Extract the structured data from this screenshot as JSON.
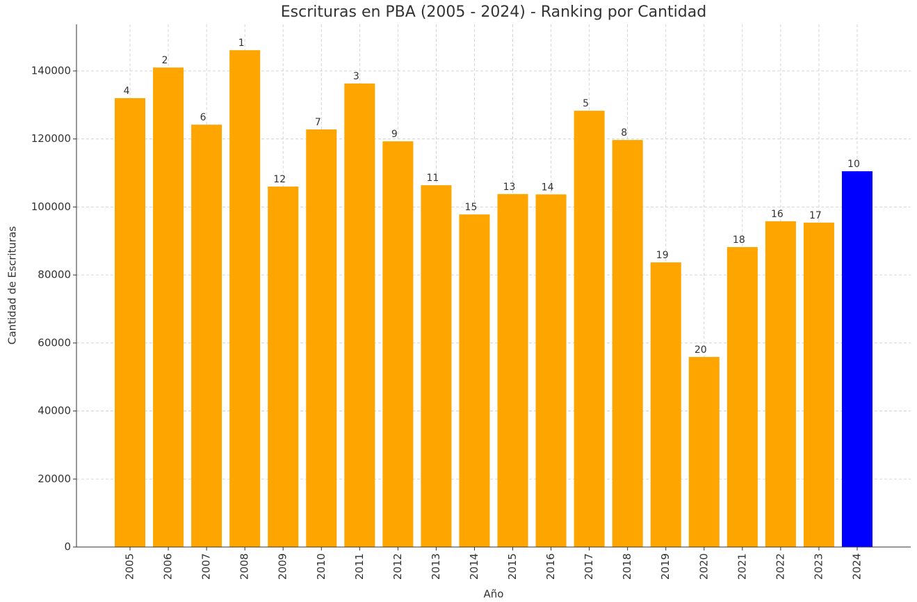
{
  "chart_data": {
    "type": "bar",
    "title": "Escrituras en PBA (2005 - 2024) - Ranking por Cantidad",
    "xlabel": "Año",
    "ylabel": "Cantidad de Escrituras",
    "categories": [
      "2005",
      "2006",
      "2007",
      "2008",
      "2009",
      "2010",
      "2011",
      "2012",
      "2013",
      "2014",
      "2015",
      "2016",
      "2017",
      "2018",
      "2019",
      "2020",
      "2021",
      "2022",
      "2023",
      "2024"
    ],
    "values": [
      132000,
      141000,
      124200,
      146100,
      106000,
      122800,
      136300,
      119300,
      106400,
      97800,
      103800,
      103700,
      128300,
      119700,
      83700,
      55900,
      88200,
      95800,
      95400,
      110500
    ],
    "annotations": [
      4,
      2,
      6,
      1,
      12,
      7,
      3,
      9,
      11,
      15,
      13,
      14,
      5,
      8,
      19,
      20,
      18,
      16,
      17,
      10
    ],
    "colors": [
      "#ffa500",
      "#ffa500",
      "#ffa500",
      "#ffa500",
      "#ffa500",
      "#ffa500",
      "#ffa500",
      "#ffa500",
      "#ffa500",
      "#ffa500",
      "#ffa500",
      "#ffa500",
      "#ffa500",
      "#ffa500",
      "#ffa500",
      "#ffa500",
      "#ffa500",
      "#ffa500",
      "#ffa500",
      "#0000ff"
    ],
    "ylim": [
      0,
      153700
    ],
    "yticks": [
      0,
      20000,
      40000,
      60000,
      80000,
      100000,
      120000,
      140000
    ],
    "grid": true
  }
}
